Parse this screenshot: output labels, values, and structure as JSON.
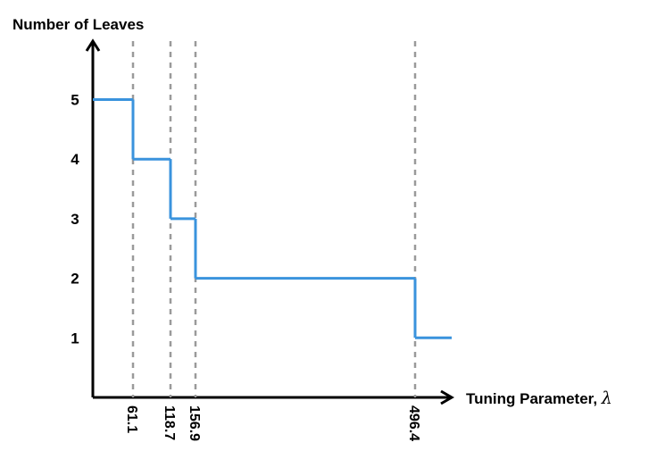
{
  "chart_data": {
    "type": "line",
    "step": true,
    "ylabel": "Number of Leaves",
    "xlabel": "Tuning Parameter, ",
    "xlabel_symbol": "λ",
    "yticks": [
      "5",
      "4",
      "3",
      "2",
      "1"
    ],
    "xticks": [
      "61.1",
      "118.7",
      "156.9",
      "496.4"
    ],
    "thresholds": [
      61.1,
      118.7,
      156.9,
      496.4
    ],
    "levels": [
      5,
      4,
      3,
      2,
      1
    ],
    "colors": {
      "line": "#3a93dd",
      "guide": "#9a9a9a",
      "axis": "#000000"
    }
  }
}
